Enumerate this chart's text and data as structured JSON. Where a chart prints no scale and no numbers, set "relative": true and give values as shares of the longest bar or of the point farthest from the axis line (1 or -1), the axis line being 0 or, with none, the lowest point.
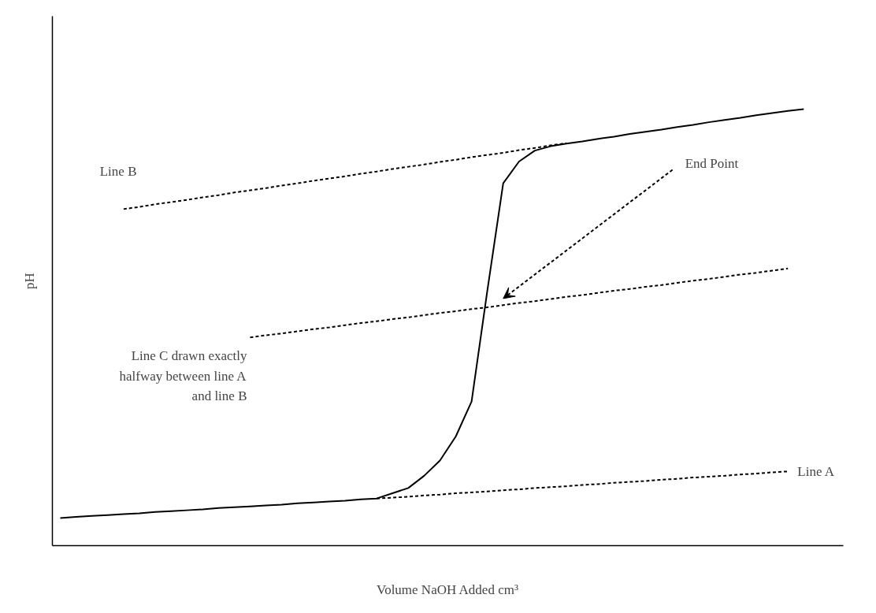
{
  "chart_data": {
    "type": "line",
    "relative": true,
    "xlabel": "Volume NaOH Added cm³",
    "ylabel": "pH",
    "grid": false,
    "legend": false,
    "marker": "none",
    "categories": [
      null,
      null,
      null,
      null,
      null,
      null,
      null,
      null,
      null,
      null,
      null,
      null,
      null,
      null,
      null,
      null,
      null,
      null,
      null,
      null,
      null,
      null,
      null,
      null,
      null,
      null,
      null,
      null,
      null,
      null,
      null,
      null,
      null,
      null,
      null,
      null,
      null,
      null,
      null,
      null,
      null,
      null,
      null,
      null,
      null,
      null,
      null,
      null
    ],
    "series": [
      {
        "color": "#000000",
        "line_style": "solid",
        "values": [
          0.063,
          0.066,
          0.068,
          0.07,
          0.072,
          0.074,
          0.077,
          0.079,
          0.081,
          0.083,
          0.086,
          0.088,
          0.09,
          0.092,
          0.094,
          0.097,
          0.099,
          0.101,
          0.103,
          0.106,
          0.108,
          0.12,
          0.132,
          0.16,
          0.195,
          0.25,
          0.33,
          0.585,
          0.83,
          0.88,
          0.905,
          0.915,
          0.921,
          0.926,
          0.932,
          0.937,
          0.943,
          0.948,
          0.953,
          0.959,
          0.964,
          0.97,
          0.975,
          0.98,
          0.986,
          0.991,
          0.996,
          1.0
        ]
      },
      {
        "name": "Line A",
        "color": "#000000",
        "line_style": "dashed",
        "values": [
          null,
          null,
          null,
          null,
          null,
          null,
          null,
          null,
          null,
          null,
          null,
          null,
          null,
          null,
          null,
          null,
          null,
          null,
          null,
          null,
          0.108,
          0.11,
          0.112,
          0.115,
          0.117,
          0.12,
          0.122,
          0.124,
          0.127,
          0.129,
          0.132,
          0.134,
          0.136,
          0.139,
          0.141,
          0.144,
          0.146,
          0.148,
          0.151,
          0.153,
          0.156,
          0.158,
          0.16,
          0.163,
          0.165,
          0.168,
          0.17,
          null
        ]
      },
      {
        "name": "Line B",
        "color": "#000000",
        "line_style": "dashed",
        "values": [
          null,
          null,
          null,
          null,
          0.771,
          0.776,
          0.782,
          0.787,
          0.792,
          0.798,
          0.803,
          0.809,
          0.814,
          0.819,
          0.825,
          0.83,
          0.836,
          0.841,
          0.846,
          0.852,
          0.857,
          0.863,
          0.868,
          0.873,
          0.879,
          0.884,
          0.89,
          0.895,
          0.9,
          0.906,
          0.911,
          0.917,
          0.922,
          null,
          null,
          null,
          null,
          null,
          null,
          null,
          null,
          null,
          null,
          null,
          null,
          null,
          null,
          null
        ]
      },
      {
        "name": "Line C drawn exactly halfway between line A and line B",
        "color": "#000000",
        "line_style": "dashed",
        "values": [
          null,
          null,
          null,
          null,
          null,
          null,
          null,
          null,
          null,
          null,
          null,
          null,
          0.477,
          0.482,
          0.486,
          0.491,
          0.496,
          0.5,
          0.505,
          0.51,
          0.514,
          0.519,
          0.523,
          0.528,
          0.533,
          0.537,
          0.542,
          0.546,
          0.551,
          0.556,
          0.56,
          0.565,
          0.57,
          0.574,
          0.579,
          0.584,
          0.588,
          0.593,
          0.597,
          0.602,
          0.607,
          0.611,
          0.616,
          0.621,
          0.625,
          0.63,
          0.635,
          null
        ]
      }
    ],
    "annotations": [
      "End Point"
    ]
  }
}
